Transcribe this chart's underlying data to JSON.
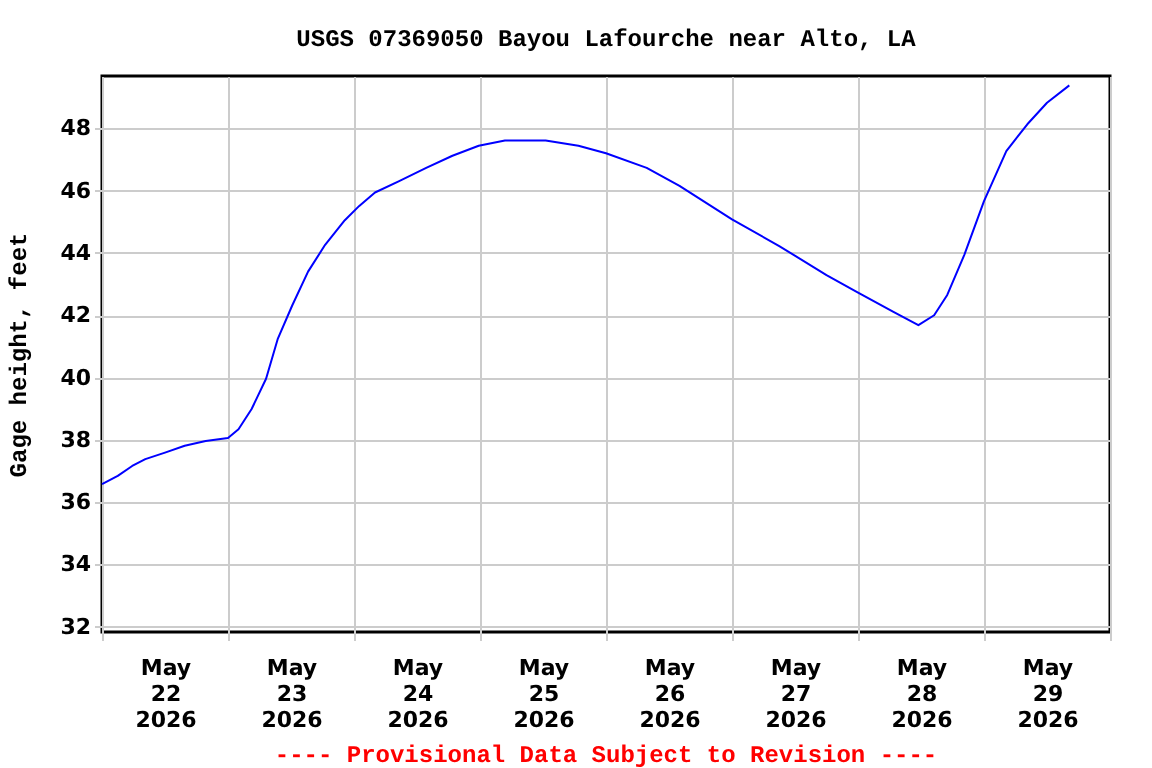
{
  "chart_data": {
    "type": "line",
    "title": "USGS 07369050 Bayou Lafourche near Alto, LA",
    "ylabel": "Gage height, feet",
    "annotations": [
      "---- Provisional Data Subject to Revision ----"
    ],
    "x": [
      "2026-05-22T00:00",
      "2026-05-22T03:00",
      "2026-05-22T05:45",
      "2026-05-22T08:15",
      "2026-05-22T12:00",
      "2026-05-22T15:45",
      "2026-05-22T19:45",
      "2026-05-23T00:00",
      "2026-05-23T02:00",
      "2026-05-23T04:30",
      "2026-05-23T07:15",
      "2026-05-23T09:30",
      "2026-05-23T12:15",
      "2026-05-23T15:15",
      "2026-05-23T18:30",
      "2026-05-23T22:15",
      "2026-05-24T01:00",
      "2026-05-24T04:00",
      "2026-05-24T08:30",
      "2026-05-24T13:45",
      "2026-05-24T18:45",
      "2026-05-24T23:45",
      "2026-05-25T04:45",
      "2026-05-25T12:30",
      "2026-05-25T18:45",
      "2026-05-26T00:00",
      "2026-05-26T07:45",
      "2026-05-26T14:00",
      "2026-05-27T00:00",
      "2026-05-27T09:00",
      "2026-05-27T18:00",
      "2026-05-27T23:45",
      "2026-05-28T06:45",
      "2026-05-28T11:30",
      "2026-05-28T14:30",
      "2026-05-28T17:00",
      "2026-05-28T20:15",
      "2026-05-29T00:00",
      "2026-05-29T04:15",
      "2026-05-29T08:15",
      "2026-05-29T12:00",
      "2026-05-29T16:15"
    ],
    "series": [
      {
        "color": "#0000ff",
        "values": [
          36.58,
          36.84,
          37.16,
          37.38,
          37.59,
          37.81,
          37.96,
          38.06,
          38.34,
          38.99,
          39.96,
          41.25,
          42.32,
          43.4,
          44.26,
          45.05,
          45.51,
          45.94,
          46.3,
          46.73,
          47.12,
          47.44,
          47.61,
          47.61,
          47.44,
          47.2,
          46.73,
          46.15,
          45.08,
          44.22,
          43.29,
          42.75,
          42.11,
          41.68,
          42.0,
          42.65,
          43.94,
          45.66,
          47.27,
          48.13,
          48.82,
          49.38
        ]
      }
    ],
    "xlim": [
      "2026-05-22T00:00",
      "2026-05-30T00:00"
    ],
    "xticks": [
      {
        "value": "2026-05-22T00:00",
        "label": null
      },
      {
        "value": "2026-05-23T00:00",
        "label": null
      },
      {
        "value": "2026-05-24T00:00",
        "label": null
      },
      {
        "value": "2026-05-25T00:00",
        "label": null
      },
      {
        "value": "2026-05-26T00:00",
        "label": null
      },
      {
        "value": "2026-05-27T00:00",
        "label": null
      },
      {
        "value": "2026-05-28T00:00",
        "label": null
      },
      {
        "value": "2026-05-29T00:00",
        "label": null
      },
      {
        "value": "2026-05-30T00:00",
        "label": null
      },
      {
        "value": "2026-05-22T12:00",
        "label": "May\n22\n2026"
      },
      {
        "value": "2026-05-23T12:00",
        "label": "May\n23\n2026"
      },
      {
        "value": "2026-05-24T12:00",
        "label": "May\n24\n2026"
      },
      {
        "value": "2026-05-25T12:00",
        "label": "May\n25\n2026"
      },
      {
        "value": "2026-05-26T12:00",
        "label": "May\n26\n2026"
      },
      {
        "value": "2026-05-27T12:00",
        "label": "May\n27\n2026"
      },
      {
        "value": "2026-05-28T12:00",
        "label": "May\n28\n2026"
      },
      {
        "value": "2026-05-29T12:00",
        "label": "May\n29\n2026"
      }
    ],
    "ylim": [
      31.83,
      49.68
    ],
    "yticks": [
      32,
      34,
      36,
      38,
      40,
      42,
      44,
      46,
      48
    ],
    "grid": true
  }
}
